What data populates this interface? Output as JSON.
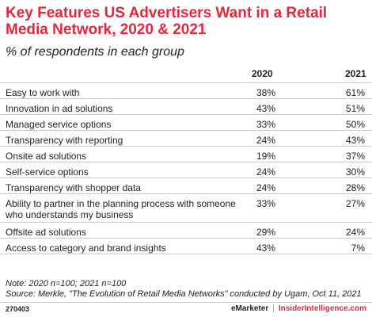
{
  "chart_data": {
    "type": "table",
    "title": "Key Features US Advertisers Want in a Retail Media Network, 2020 & 2021",
    "subtitle": "% of respondents in each group",
    "columns": [
      "2020",
      "2021"
    ],
    "rows": [
      {
        "label": "Easy to work with",
        "values": [
          "38%",
          "61%"
        ]
      },
      {
        "label": "Innovation in ad solutions",
        "values": [
          "43%",
          "51%"
        ]
      },
      {
        "label": "Managed service options",
        "values": [
          "33%",
          "50%"
        ]
      },
      {
        "label": "Transparency with reporting",
        "values": [
          "24%",
          "43%"
        ]
      },
      {
        "label": "Onsite ad solutions",
        "values": [
          "19%",
          "37%"
        ]
      },
      {
        "label": "Self-service options",
        "values": [
          "24%",
          "30%"
        ]
      },
      {
        "label": "Transparency with shopper data",
        "values": [
          "24%",
          "28%"
        ]
      },
      {
        "label": "Ability to partner in the planning process with someone who understands my business",
        "values": [
          "33%",
          "27%"
        ]
      },
      {
        "label": "Offsite ad solutions",
        "values": [
          "29%",
          "24%"
        ]
      },
      {
        "label": "Access to category and brand insights",
        "values": [
          "43%",
          "7%"
        ]
      }
    ],
    "note": "Note: 2020 n=100; 2021 n=100",
    "source": "Source: Merkle, \"The Evolution of Retail Media Networks\" conducted by Ugam, Oct 11, 2021"
  },
  "footer": {
    "code": "270403",
    "brand1": "eMarketer",
    "separator": "|",
    "brand2": "InsiderIntelligence.com"
  },
  "colors": {
    "title": "#e6263c",
    "rule": "#c8c8c8"
  }
}
